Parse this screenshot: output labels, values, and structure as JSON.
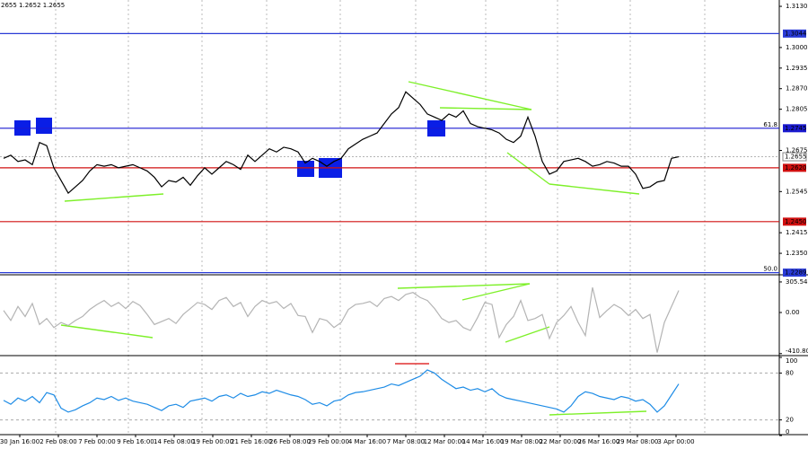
{
  "ohlc_text": "2655 1.2652 1.2655",
  "time_labels": [
    "30 Jan 16:00",
    "2 Feb 08:00",
    "7 Feb 00:00",
    "9 Feb 16:00",
    "14 Feb 08:00",
    "19 Feb 00:00",
    "21 Feb 16:00",
    "26 Feb 08:00",
    "29 Feb 00:00",
    "4 Mar 16:00",
    "7 Mar 08:00",
    "12 Mar 00:00",
    "14 Mar 16:00",
    "19 Mar 08:00",
    "22 Mar 00:00",
    "26 Mar 16:00",
    "29 Mar 08:00",
    "3 Apr 00:00"
  ],
  "chart_data": [
    {
      "type": "line",
      "color": "#000000",
      "values": [
        1.265,
        1.266,
        1.264,
        1.2645,
        1.263,
        1.27,
        1.269,
        1.262,
        1.258,
        1.254,
        1.256,
        1.258,
        1.261,
        1.263,
        1.2625,
        1.263,
        1.262,
        1.2625,
        1.263,
        1.262,
        1.261,
        1.259,
        1.256,
        1.258,
        1.2575,
        1.259,
        1.2565,
        1.2595,
        1.262,
        1.26,
        1.262,
        1.264,
        1.263,
        1.2615,
        1.266,
        1.264,
        1.266,
        1.268,
        1.267,
        1.2685,
        1.268,
        1.267,
        1.2635,
        1.265,
        1.264,
        1.2625,
        1.264,
        1.265,
        1.268,
        1.2695,
        1.271,
        1.272,
        1.273,
        1.276,
        1.279,
        1.281,
        1.286,
        1.284,
        1.282,
        1.279,
        1.278,
        1.277,
        1.279,
        1.278,
        1.28,
        1.276,
        1.275,
        1.2745,
        1.274,
        1.273,
        1.271,
        1.27,
        1.272,
        1.278,
        1.272,
        1.264,
        1.26,
        1.261,
        1.264,
        1.2645,
        1.265,
        1.264,
        1.2625,
        1.263,
        1.264,
        1.2635,
        1.2625,
        1.2625,
        1.26,
        1.2555,
        1.256,
        1.2575,
        1.258,
        1.265,
        1.2655
      ],
      "ylim": [
        1.2285,
        1.315
      ],
      "yticks": [
        {
          "value": 1.313,
          "label": "1.3130"
        },
        {
          "value": 1.3,
          "label": "1.3000"
        },
        {
          "value": 1.2935,
          "label": "1.2935"
        },
        {
          "value": 1.287,
          "label": "1.2870"
        },
        {
          "value": 1.2805,
          "label": "1.2805"
        },
        {
          "value": 1.2675,
          "label": "1.2675"
        },
        {
          "value": 1.2545,
          "label": "1.2545"
        },
        {
          "value": 1.2415,
          "label": "1.2415"
        },
        {
          "value": 1.235,
          "label": "1.2350"
        }
      ],
      "levels": [
        {
          "value": 1.3044,
          "label": "1.3044",
          "color": "#2a3bd6"
        },
        {
          "value": 1.2745,
          "label": "1.2745",
          "color": "#1a1ad0",
          "fib": "61.8"
        },
        {
          "value": 1.2655,
          "label": "1.2655",
          "color": "#aaaaaa"
        },
        {
          "value": 1.262,
          "label": "1.2620",
          "color": "#d01010"
        },
        {
          "value": 1.245,
          "label": "1.2450",
          "color": "#d01010"
        },
        {
          "value": 1.2289,
          "label": "1.2289",
          "color": "#2a3bd6",
          "fib": "50.0"
        }
      ]
    },
    {
      "type": "line",
      "color": "#b4b4b4",
      "values": [
        20,
        -80,
        60,
        -40,
        90,
        -120,
        -60,
        -150,
        -100,
        -130,
        -80,
        -40,
        30,
        80,
        120,
        60,
        100,
        40,
        110,
        70,
        -20,
        -120,
        -90,
        -60,
        -110,
        -20,
        40,
        100,
        80,
        30,
        120,
        150,
        60,
        100,
        -40,
        60,
        120,
        90,
        110,
        40,
        90,
        -30,
        -40,
        -200,
        -60,
        -80,
        -150,
        -100,
        30,
        80,
        90,
        110,
        60,
        140,
        160,
        120,
        180,
        200,
        150,
        120,
        40,
        -60,
        -100,
        -80,
        -150,
        -180,
        -50,
        100,
        80,
        -250,
        -120,
        -40,
        120,
        -80,
        -60,
        -20,
        -260,
        -100,
        -30,
        60,
        -100,
        -230,
        250,
        -50,
        20,
        80,
        40,
        -30,
        30,
        -60,
        -20,
        -400,
        -100,
        60,
        220
      ],
      "ylim": [
        -422,
        359
      ],
      "yticks": [
        305.5401,
        {
          "value": 0,
          "label": "0.00"
        },
        -410.803
      ]
    },
    {
      "type": "line",
      "color": "#1e8ce6",
      "values": [
        45,
        40,
        48,
        44,
        50,
        42,
        55,
        52,
        35,
        30,
        33,
        38,
        42,
        48,
        46,
        50,
        45,
        48,
        44,
        42,
        40,
        36,
        32,
        38,
        40,
        36,
        44,
        46,
        48,
        44,
        50,
        52,
        48,
        54,
        50,
        52,
        56,
        54,
        58,
        55,
        52,
        50,
        46,
        40,
        42,
        38,
        44,
        46,
        52,
        55,
        56,
        58,
        60,
        62,
        66,
        64,
        68,
        72,
        76,
        84,
        80,
        72,
        66,
        60,
        62,
        58,
        60,
        56,
        60,
        52,
        48,
        46,
        44,
        42,
        40,
        38,
        36,
        34,
        30,
        38,
        50,
        56,
        54,
        50,
        48,
        46,
        50,
        48,
        44,
        46,
        40,
        30,
        38,
        52,
        66
      ],
      "ylim": [
        0,
        100
      ],
      "yticks": [
        100,
        80,
        20,
        0
      ]
    }
  ]
}
